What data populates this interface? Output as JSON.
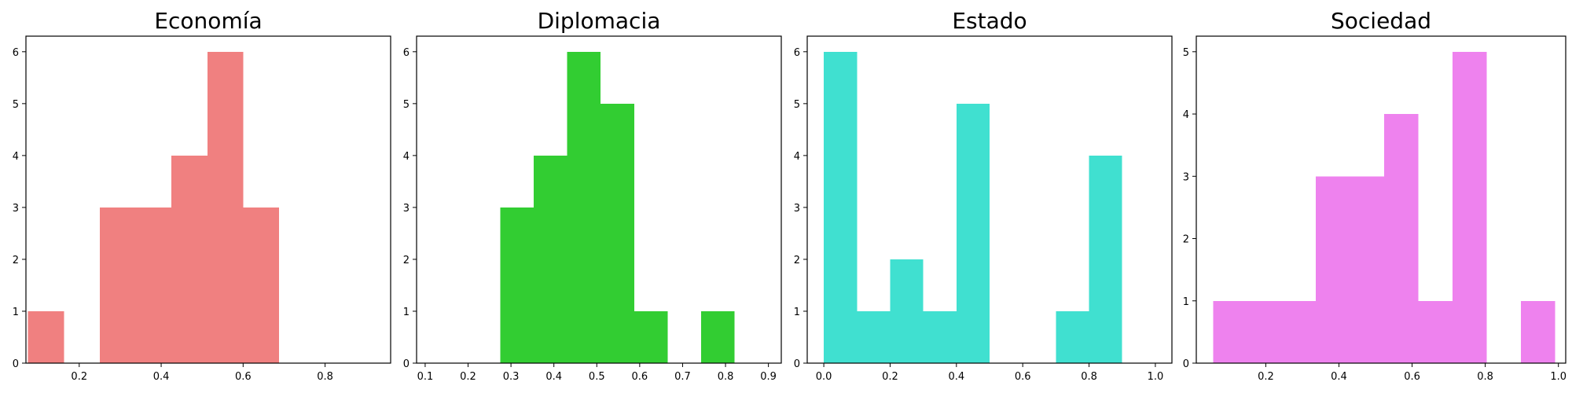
{
  "chart_data": [
    {
      "type": "bar",
      "chart_kind": "histogram",
      "title": "Economía",
      "color": "#f08080",
      "xlim": [
        0.07,
        0.96
      ],
      "ylim": [
        0,
        6.3
      ],
      "xticks": [
        "0.2",
        "0.4",
        "0.6",
        "0.8"
      ],
      "xtick_values": [
        0.2,
        0.4,
        0.6,
        0.8
      ],
      "yticks": [
        "0",
        "1",
        "2",
        "3",
        "4",
        "5",
        "6"
      ],
      "ytick_values": [
        0,
        1,
        2,
        3,
        4,
        5,
        6
      ],
      "bins": [
        {
          "x0": 0.075,
          "x1": 0.163,
          "count": 1
        },
        {
          "x0": 0.163,
          "x1": 0.25,
          "count": 0
        },
        {
          "x0": 0.25,
          "x1": 0.338,
          "count": 3
        },
        {
          "x0": 0.338,
          "x1": 0.425,
          "count": 3
        },
        {
          "x0": 0.425,
          "x1": 0.513,
          "count": 4
        },
        {
          "x0": 0.513,
          "x1": 0.6,
          "count": 6
        },
        {
          "x0": 0.6,
          "x1": 0.688,
          "count": 3
        }
      ]
    },
    {
      "type": "bar",
      "chart_kind": "histogram",
      "title": "Diplomacia",
      "color": "#32cd32",
      "xlim": [
        0.08,
        0.93
      ],
      "ylim": [
        0,
        6.3
      ],
      "xticks": [
        "0.1",
        "0.2",
        "0.3",
        "0.4",
        "0.5",
        "0.6",
        "0.7",
        "0.8",
        "0.9"
      ],
      "xtick_values": [
        0.1,
        0.2,
        0.3,
        0.4,
        0.5,
        0.6,
        0.7,
        0.8,
        0.9
      ],
      "yticks": [
        "0",
        "1",
        "2",
        "3",
        "4",
        "5",
        "6"
      ],
      "ytick_values": [
        0,
        1,
        2,
        3,
        4,
        5,
        6
      ],
      "bins": [
        {
          "x0": 0.275,
          "x1": 0.353,
          "count": 3
        },
        {
          "x0": 0.353,
          "x1": 0.431,
          "count": 4
        },
        {
          "x0": 0.431,
          "x1": 0.509,
          "count": 6
        },
        {
          "x0": 0.509,
          "x1": 0.587,
          "count": 5
        },
        {
          "x0": 0.587,
          "x1": 0.665,
          "count": 1
        },
        {
          "x0": 0.665,
          "x1": 0.743,
          "count": 0
        },
        {
          "x0": 0.743,
          "x1": 0.821,
          "count": 1
        }
      ]
    },
    {
      "type": "bar",
      "chart_kind": "histogram",
      "title": "Estado",
      "color": "#40e0d0",
      "xlim": [
        -0.05,
        1.05
      ],
      "ylim": [
        0,
        6.3
      ],
      "xticks": [
        "0.0",
        "0.2",
        "0.4",
        "0.6",
        "0.8",
        "1.0"
      ],
      "xtick_values": [
        0.0,
        0.2,
        0.4,
        0.6,
        0.8,
        1.0
      ],
      "yticks": [
        "0",
        "1",
        "2",
        "3",
        "4",
        "5",
        "6"
      ],
      "ytick_values": [
        0,
        1,
        2,
        3,
        4,
        5,
        6
      ],
      "bins": [
        {
          "x0": 0.0,
          "x1": 0.1,
          "count": 6
        },
        {
          "x0": 0.1,
          "x1": 0.2,
          "count": 1
        },
        {
          "x0": 0.2,
          "x1": 0.3,
          "count": 2
        },
        {
          "x0": 0.3,
          "x1": 0.4,
          "count": 1
        },
        {
          "x0": 0.4,
          "x1": 0.5,
          "count": 5
        },
        {
          "x0": 0.5,
          "x1": 0.6,
          "count": 0
        },
        {
          "x0": 0.6,
          "x1": 0.7,
          "count": 0
        },
        {
          "x0": 0.7,
          "x1": 0.8,
          "count": 1
        },
        {
          "x0": 0.8,
          "x1": 0.9,
          "count": 4
        }
      ]
    },
    {
      "type": "bar",
      "chart_kind": "histogram",
      "title": "Sociedad",
      "color": "#ee82ee",
      "xlim": [
        0.01,
        1.02
      ],
      "ylim": [
        0,
        5.25
      ],
      "xticks": [
        "0.2",
        "0.4",
        "0.6",
        "0.8",
        "1.0"
      ],
      "xtick_values": [
        0.2,
        0.4,
        0.6,
        0.8,
        1.0
      ],
      "yticks": [
        "0",
        "1",
        "2",
        "3",
        "4",
        "5"
      ],
      "ytick_values": [
        0,
        1,
        2,
        3,
        4,
        5
      ],
      "bins": [
        {
          "x0": 0.056,
          "x1": 0.15,
          "count": 1
        },
        {
          "x0": 0.15,
          "x1": 0.243,
          "count": 1
        },
        {
          "x0": 0.243,
          "x1": 0.337,
          "count": 1
        },
        {
          "x0": 0.337,
          "x1": 0.43,
          "count": 3
        },
        {
          "x0": 0.43,
          "x1": 0.524,
          "count": 3
        },
        {
          "x0": 0.524,
          "x1": 0.617,
          "count": 4
        },
        {
          "x0": 0.617,
          "x1": 0.711,
          "count": 1
        },
        {
          "x0": 0.711,
          "x1": 0.804,
          "count": 5
        },
        {
          "x0": 0.804,
          "x1": 0.898,
          "count": 0
        },
        {
          "x0": 0.898,
          "x1": 0.991,
          "count": 1
        }
      ]
    }
  ]
}
